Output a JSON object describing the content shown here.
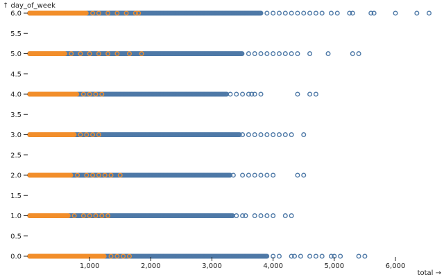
{
  "chart_data": {
    "type": "scatter",
    "xlabel": "total →",
    "ylabel": "↑ day_of_week",
    "xlim": [
      0,
      6300
    ],
    "ylim": [
      0,
      6
    ],
    "x_ticks": [
      {
        "value": 1000,
        "label": "1,000"
      },
      {
        "value": 2000,
        "label": "2,000"
      },
      {
        "value": 3000,
        "label": "3,000"
      },
      {
        "value": 4000,
        "label": "4,000"
      },
      {
        "value": 5000,
        "label": "5,000"
      },
      {
        "value": 6000,
        "label": "6,000"
      }
    ],
    "y_ticks": [
      {
        "value": 0.0,
        "label": "0.0"
      },
      {
        "value": 0.5,
        "label": "0.5"
      },
      {
        "value": 1.0,
        "label": "1.0"
      },
      {
        "value": 1.5,
        "label": "1.5"
      },
      {
        "value": 2.0,
        "label": "2.0"
      },
      {
        "value": 2.5,
        "label": "2.5"
      },
      {
        "value": 3.0,
        "label": "3.0"
      },
      {
        "value": 3.5,
        "label": "3.5"
      },
      {
        "value": 4.0,
        "label": "4.0"
      },
      {
        "value": 4.5,
        "label": "4.5"
      },
      {
        "value": 5.0,
        "label": "5.0"
      },
      {
        "value": 5.5,
        "label": "5.5"
      },
      {
        "value": 6.0,
        "label": "6.0"
      }
    ],
    "grid": false,
    "marker": "hollow-circle",
    "series": [
      {
        "color": "#4e79a7",
        "points": [
          {
            "y": 6,
            "x_dense_end": 3800,
            "x": [
              3900,
              4000,
              4100,
              4200,
              4300,
              4400,
              4500,
              4600,
              4700,
              4800,
              4950,
              5050,
              5250,
              5300,
              5600,
              5650,
              6000,
              6350,
              6550
            ]
          },
          {
            "y": 5,
            "x_dense_end": 3500,
            "x": [
              3600,
              3700,
              3800,
              3900,
              4000,
              4100,
              4200,
              4300,
              4400,
              4600,
              4900,
              5300,
              5400
            ]
          },
          {
            "y": 4,
            "x_dense_end": 3250,
            "x": [
              3300,
              3400,
              3500,
              3600,
              3650,
              3700,
              3800,
              4400,
              4600,
              4700
            ]
          },
          {
            "y": 3,
            "x_dense_end": 3450,
            "x": [
              3500,
              3600,
              3700,
              3800,
              3900,
              4000,
              4100,
              4200,
              4300,
              4500
            ]
          },
          {
            "y": 2,
            "x_dense_end": 3300,
            "x": [
              3350,
              3500,
              3600,
              3700,
              3800,
              3900,
              4000,
              4400,
              4500
            ]
          },
          {
            "y": 1,
            "x_dense_end": 3350,
            "x": [
              3400,
              3500,
              3550,
              3700,
              3800,
              3900,
              4000,
              4200,
              4300
            ]
          },
          {
            "y": 0,
            "x_dense_end": 3900,
            "x": [
              4000,
              4100,
              4300,
              4350,
              4450,
              4600,
              4700,
              4800,
              4950,
              5000,
              5100,
              5400,
              5500
            ]
          }
        ]
      },
      {
        "color": "#f28e2b",
        "points": [
          {
            "y": 6,
            "x_dense_end": 950,
            "x": [
              1050,
              1150,
              1300,
              1450,
              1600,
              1750,
              1800
            ]
          },
          {
            "y": 5,
            "x_dense_end": 600,
            "x": [
              700,
              850,
              1000,
              1150,
              1300,
              1450,
              1650,
              1850
            ]
          },
          {
            "y": 4,
            "x_dense_end": 800,
            "x": [
              900,
              1000,
              1100,
              1200
            ]
          },
          {
            "y": 3,
            "x_dense_end": 750,
            "x": [
              850,
              950,
              1050,
              1150
            ]
          },
          {
            "y": 2,
            "x_dense_end": 700,
            "x": [
              800,
              950,
              1050,
              1150,
              1250,
              1350,
              1500
            ]
          },
          {
            "y": 1,
            "x_dense_end": 650,
            "x": [
              750,
              900,
              1000,
              1100,
              1200,
              1300
            ]
          },
          {
            "y": 0,
            "x_dense_end": 1250,
            "x": [
              1350,
              1450,
              1550,
              1650
            ]
          }
        ]
      }
    ]
  }
}
